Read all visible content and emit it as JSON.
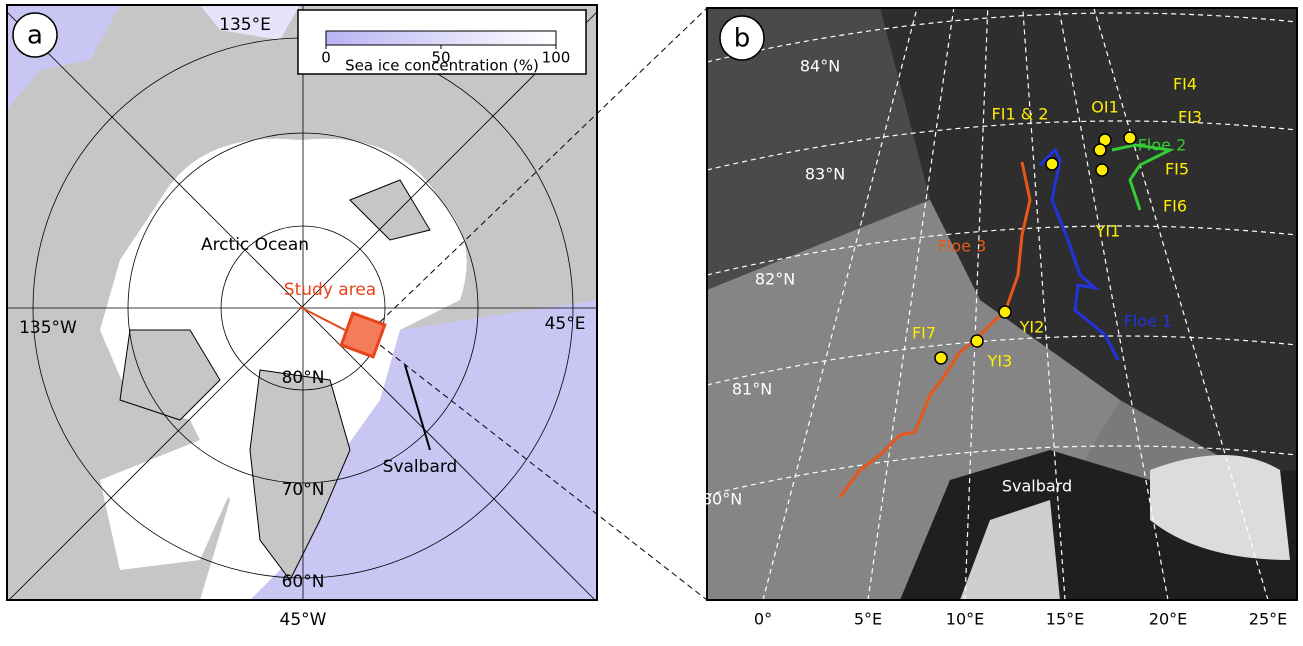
{
  "panel_a": {
    "letter": "a",
    "colorbar": {
      "label": "Sea ice concentration (%)",
      "lim": [
        0,
        100
      ],
      "ticks": [
        0,
        50,
        100
      ]
    },
    "labels": [
      "135°E",
      "Arctic Ocean",
      "Study area",
      "135°W",
      "45°E",
      "80°N",
      "70°N",
      "60°N",
      "Svalbard"
    ],
    "bottom_label": "45°W"
  },
  "panel_b": {
    "letter": "b",
    "lat_labels": [
      "84°N",
      "83°N",
      "82°N",
      "81°N",
      "80°N"
    ],
    "lon_labels": [
      "0°",
      "5°E",
      "10°E",
      "15°E",
      "20°E",
      "25°E"
    ],
    "floes": [
      "Floe 1",
      "Floe 2",
      "Floe 3"
    ],
    "sites": [
      "FI1 & 2",
      "OI1",
      "FI4",
      "FI3",
      "FI5",
      "FI6",
      "YI1",
      "YI2",
      "YI3",
      "FI7"
    ],
    "place": "Svalbard"
  }
}
